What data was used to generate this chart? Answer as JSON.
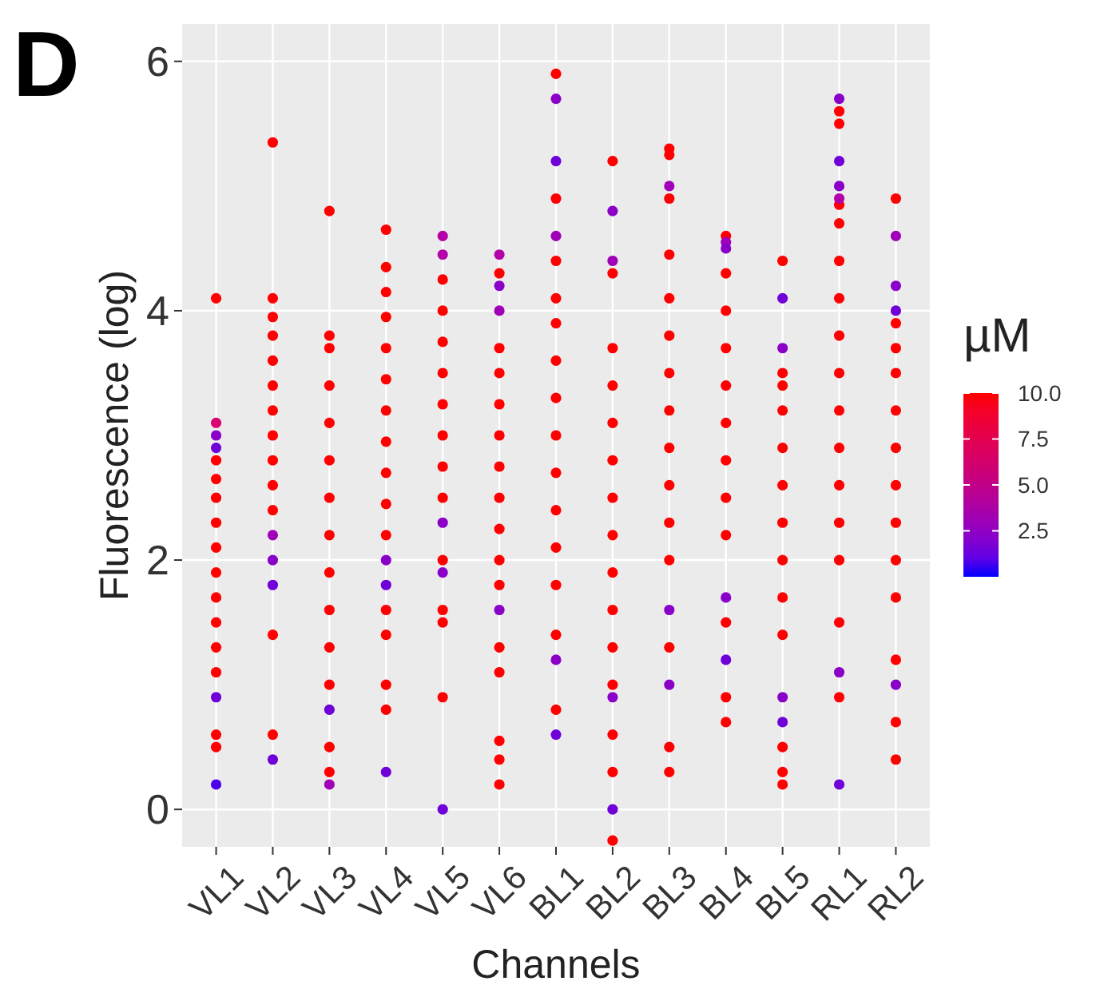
{
  "chart_data": {
    "type": "scatter",
    "xlabel": "Channels",
    "ylabel": "Fluorescence (log)",
    "clabel": "µM",
    "annotations": [
      "D"
    ],
    "grid": true,
    "marker": "circle",
    "categories": [
      "VL1",
      "VL2",
      "VL3",
      "VL4",
      "VL5",
      "VL6",
      "BL1",
      "BL2",
      "BL3",
      "BL4",
      "BL5",
      "RL1",
      "RL2"
    ],
    "ylim": [
      -0.3,
      6.3
    ],
    "yticks": [
      0,
      2,
      4,
      6
    ],
    "clim": [
      0,
      10
    ],
    "cticks": [
      2.5,
      {
        "value": 5,
        "label": "5.0"
      },
      7.5,
      {
        "value": 10,
        "label": "10.0"
      }
    ],
    "series": [
      {
        "color": "#ff0000",
        "x": [
          "VL1",
          "VL1",
          "VL1",
          "VL1",
          "VL1",
          "VL1",
          "VL1",
          "VL1",
          "VL1",
          "VL1",
          "VL1",
          "VL1",
          "VL1",
          "VL2",
          "VL2",
          "VL2",
          "VL2",
          "VL2",
          "VL2",
          "VL2",
          "VL2",
          "VL2",
          "VL2",
          "VL2",
          "VL2",
          "VL2",
          "VL3",
          "VL3",
          "VL3",
          "VL3",
          "VL3",
          "VL3",
          "VL3",
          "VL3",
          "VL3",
          "VL3",
          "VL3",
          "VL3",
          "VL3",
          "VL3",
          "VL4",
          "VL4",
          "VL4",
          "VL4",
          "VL4",
          "VL4",
          "VL4",
          "VL4",
          "VL4",
          "VL4",
          "VL4",
          "VL4",
          "VL4",
          "VL4",
          "VL4",
          "VL5",
          "VL5",
          "VL5",
          "VL5",
          "VL5",
          "VL5",
          "VL5",
          "VL5",
          "VL5",
          "VL5",
          "VL5",
          "VL5",
          "VL6",
          "VL6",
          "VL6",
          "VL6",
          "VL6",
          "VL6",
          "VL6",
          "VL6",
          "VL6",
          "VL6",
          "VL6",
          "VL6",
          "VL6",
          "VL6",
          "VL6",
          "BL1",
          "BL1",
          "BL1",
          "BL1",
          "BL1",
          "BL1",
          "BL1",
          "BL1",
          "BL1",
          "BL1",
          "BL1",
          "BL1",
          "BL1",
          "BL1",
          "BL2",
          "BL2",
          "BL2",
          "BL2",
          "BL2",
          "BL2",
          "BL2",
          "BL2",
          "BL2",
          "BL2",
          "BL2",
          "BL2",
          "BL2",
          "BL2",
          "BL2",
          "BL3",
          "BL3",
          "BL3",
          "BL3",
          "BL3",
          "BL3",
          "BL3",
          "BL3",
          "BL3",
          "BL3",
          "BL3",
          "BL3",
          "BL3",
          "BL3",
          "BL3",
          "BL4",
          "BL4",
          "BL4",
          "BL4",
          "BL4",
          "BL4",
          "BL4",
          "BL4",
          "BL4",
          "BL4",
          "BL4",
          "BL4",
          "BL5",
          "BL5",
          "BL5",
          "BL5",
          "BL5",
          "BL5",
          "BL5",
          "BL5",
          "BL5",
          "BL5",
          "BL5",
          "BL5",
          "BL5",
          "RL1",
          "RL1",
          "RL1",
          "RL1",
          "RL1",
          "RL1",
          "RL1",
          "RL1",
          "RL1",
          "RL1",
          "RL1",
          "RL1",
          "RL1",
          "RL1",
          "RL1",
          "RL2",
          "RL2",
          "RL2",
          "RL2",
          "RL2",
          "RL2",
          "RL2",
          "RL2",
          "RL2",
          "RL2",
          "RL2",
          "RL2",
          "RL2"
        ],
        "values": [
          1.1,
          1.3,
          1.5,
          1.7,
          1.9,
          2.1,
          2.3,
          2.5,
          2.65,
          2.8,
          4.1,
          0.6,
          0.5,
          2.4,
          2.6,
          2.8,
          3.0,
          3.2,
          3.4,
          3.6,
          3.8,
          3.95,
          1.4,
          5.35,
          4.1,
          0.6,
          1.0,
          1.3,
          1.6,
          1.9,
          2.2,
          2.5,
          2.8,
          3.1,
          3.4,
          3.7,
          3.8,
          4.8,
          0.5,
          0.3,
          2.2,
          2.45,
          2.7,
          2.95,
          3.2,
          3.45,
          3.7,
          3.95,
          4.15,
          4.35,
          4.65,
          1.6,
          1.4,
          1.0,
          0.8,
          2.5,
          2.75,
          3.0,
          3.25,
          3.5,
          3.75,
          4.0,
          4.25,
          2.0,
          1.6,
          1.5,
          0.9,
          1.8,
          2.0,
          2.25,
          2.5,
          2.75,
          3.0,
          3.25,
          3.5,
          3.7,
          4.3,
          1.3,
          1.1,
          0.55,
          0.4,
          0.2,
          1.8,
          2.1,
          2.4,
          2.7,
          3.0,
          3.3,
          3.6,
          3.9,
          4.1,
          4.4,
          4.9,
          5.9,
          1.4,
          0.8,
          1.0,
          1.3,
          1.6,
          1.9,
          2.2,
          2.5,
          2.8,
          3.1,
          3.4,
          3.7,
          4.3,
          5.2,
          0.6,
          0.3,
          -0.25,
          2.0,
          2.3,
          2.6,
          2.9,
          3.2,
          3.5,
          3.8,
          4.1,
          4.45,
          4.9,
          5.25,
          5.3,
          1.3,
          0.5,
          0.3,
          2.2,
          2.5,
          2.8,
          3.1,
          3.4,
          3.7,
          4.0,
          4.3,
          4.6,
          1.5,
          0.9,
          0.7,
          1.4,
          1.7,
          2.0,
          2.3,
          2.6,
          2.9,
          3.2,
          3.4,
          3.5,
          4.4,
          0.5,
          0.3,
          0.2,
          2.0,
          2.3,
          2.6,
          2.9,
          3.2,
          3.5,
          3.8,
          4.1,
          4.4,
          4.7,
          4.85,
          5.5,
          5.6,
          1.5,
          0.9,
          1.7,
          2.0,
          2.3,
          2.6,
          2.9,
          3.2,
          3.5,
          3.7,
          3.9,
          4.9,
          1.2,
          0.7,
          0.4
        ]
      },
      {
        "color": "#dc0070",
        "x": [
          "VL1"
        ],
        "values": [
          3.1
        ]
      },
      {
        "color": "#b400a8",
        "x": [
          "VL5",
          "VL5",
          "VL6",
          "RL1"
        ],
        "values": [
          4.45,
          4.6,
          4.45,
          4.9
        ]
      },
      {
        "color": "#a000b8",
        "x": [
          "VL2",
          "VL3",
          "VL6",
          "BL1",
          "BL2",
          "BL3",
          "BL4",
          "RL2"
        ],
        "values": [
          2.2,
          0.2,
          4.0,
          4.6,
          4.4,
          5.0,
          4.55,
          4.6
        ]
      },
      {
        "color": "#8a00c8",
        "x": [
          "VL1",
          "VL2",
          "VL4",
          "VL5",
          "VL5",
          "VL6",
          "VL6",
          "BL1",
          "BL1",
          "BL2",
          "BL2",
          "BL3",
          "BL3",
          "BL4",
          "BL4",
          "BL5",
          "BL5",
          "RL1",
          "RL1",
          "RL1",
          "RL2",
          "RL2"
        ],
        "values": [
          3.0,
          2.0,
          2.0,
          2.3,
          1.9,
          4.2,
          1.6,
          5.7,
          1.2,
          4.8,
          0.9,
          1.6,
          1.0,
          4.5,
          1.7,
          3.7,
          0.9,
          5.0,
          1.1,
          5.7,
          4.2,
          1.0
        ]
      },
      {
        "color": "#7000d8",
        "x": [
          "VL1",
          "VL1",
          "VL2",
          "VL2",
          "VL3",
          "VL4",
          "VL4",
          "VL5",
          "BL1",
          "BL1",
          "BL2",
          "BL4",
          "BL5",
          "BL5",
          "RL1",
          "RL1",
          "RL2"
        ],
        "values": [
          2.9,
          0.9,
          1.8,
          0.4,
          0.8,
          1.8,
          0.3,
          0.0,
          5.2,
          0.6,
          0.0,
          1.2,
          4.1,
          0.7,
          5.2,
          0.2,
          4.0
        ]
      },
      {
        "color": "#4c00ea",
        "x": [
          "VL1"
        ],
        "values": [
          0.2
        ]
      }
    ]
  }
}
